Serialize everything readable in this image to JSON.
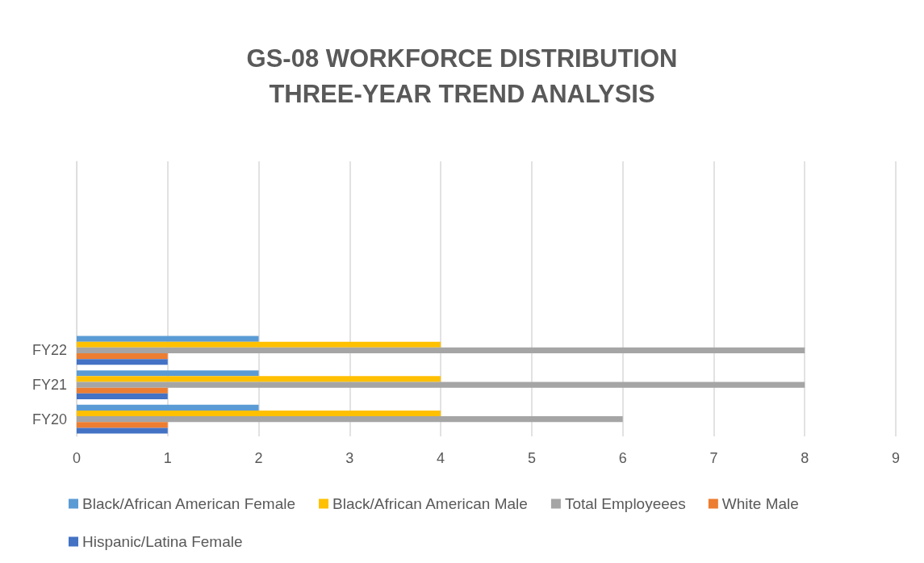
{
  "chart_data": {
    "type": "bar",
    "orientation": "horizontal",
    "title": "GS-08 WORKFORCE DISTRIBUTION\nTHREE-YEAR TREND ANALYSIS",
    "categories": [
      null,
      null,
      null,
      null,
      null,
      "FY22",
      "FY21",
      "FY20"
    ],
    "series": [
      {
        "name": "Black/African American Female",
        "color": "#5b9bd5",
        "values": [
          null,
          null,
          null,
          null,
          null,
          2,
          2,
          2
        ]
      },
      {
        "name": "Black/African American Male",
        "color": "#ffc000",
        "values": [
          null,
          null,
          null,
          null,
          null,
          4,
          4,
          4
        ]
      },
      {
        "name": "Total Employeees",
        "color": "#a5a5a5",
        "values": [
          null,
          null,
          null,
          null,
          null,
          8,
          8,
          6
        ]
      },
      {
        "name": "White Male",
        "color": "#ed7d31",
        "values": [
          null,
          null,
          null,
          null,
          null,
          1,
          1,
          1
        ]
      },
      {
        "name": "Hispanic/Latina Female",
        "color": "#4472c4",
        "values": [
          null,
          null,
          null,
          null,
          null,
          1,
          1,
          1
        ]
      }
    ],
    "xlim": [
      0,
      9
    ],
    "xticks": [
      0,
      1,
      2,
      3,
      4,
      5,
      6,
      7,
      8,
      9
    ],
    "grid": "x",
    "legend": "bottom"
  }
}
